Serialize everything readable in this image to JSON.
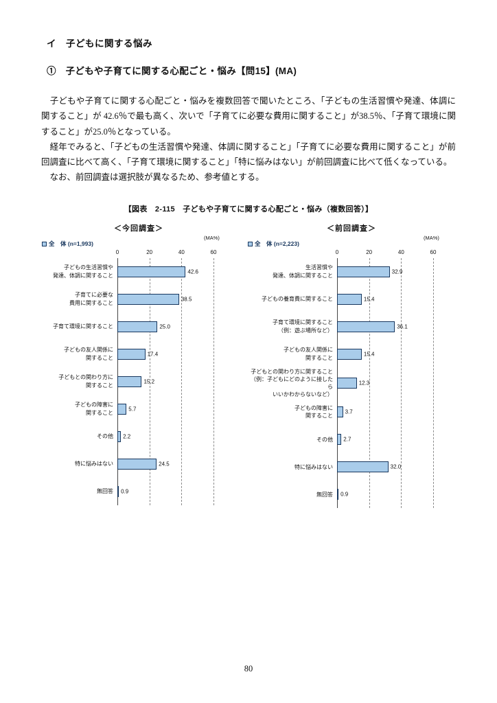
{
  "page": {
    "heading": "イ　子どもに関する悩み",
    "subheading": "①　子どもや子育てに関する心配ごと・悩み【問15】(MA)",
    "paragraphs": [
      "　子どもや子育てに関する心配ごと・悩みを複数回答で聞いたところ、「子どもの生活習慣や発達、体調に関すること」が 42.6％で最も高く、次いで「子育てに必要な費用に関すること」が38.5％、「子育て環境に関すること」が25.0％となっている。",
      "　経年でみると、「子どもの生活習慣や発達、体調に関すること」「子育てに必要な費用に関すること」が前回調査に比べて高く、「子育て環境に関すること」「特に悩みはない」が前回調査に比べて低くなっている。",
      "　なお、前回調査は選択肢が異なるため、参考値とする。"
    ],
    "figure_caption": "【図表　2-115　子どもや子育てに関する心配ごと・悩み（複数回答）】",
    "page_number": "80"
  },
  "colors": {
    "bar_fill": "#A9CCEA",
    "bar_border": "#17365D",
    "legend_text": "#17365D",
    "gridline": "#8a8a8a"
  },
  "chart_data": [
    {
      "type": "bar",
      "orientation": "horizontal",
      "title": "＜今回調査＞",
      "legend": {
        "label": "全　体 (n=1,993)"
      },
      "unit_label": "(MA%)",
      "xlim": [
        0,
        60
      ],
      "xticks": [
        0,
        20,
        40,
        60
      ],
      "grid": "dashed-vertical",
      "categories": [
        "子どもの生活習慣や\n発達、体調に関すること",
        "子育てに必要な\n費用に関すること",
        "子育て環境に関すること",
        "子どもの友人関係に\n関すること",
        "子どもとの関わり方に\n関すること",
        "子どもの障害に\n関すること",
        "その他",
        "特に悩みはない",
        "無回答"
      ],
      "values": [
        42.6,
        38.5,
        25.0,
        17.4,
        15.2,
        5.7,
        2.2,
        24.5,
        0.9
      ]
    },
    {
      "type": "bar",
      "orientation": "horizontal",
      "title": "＜前回調査＞",
      "legend": {
        "label": "全　体 (n=2,223)"
      },
      "unit_label": "(MA%)",
      "xlim": [
        0,
        60
      ],
      "xticks": [
        0,
        20,
        40,
        60
      ],
      "grid": "dashed-vertical",
      "categories": [
        "生活習慣や\n発達、体調に関すること",
        "子どもの養育費に関すること",
        "子育て環境に関すること\n（例：遊ぶ場所など）",
        "子どもの友人関係に\n関すること",
        "子どもとの関わり方に関すること\n（例：子どもにどのように接したら\nいいかわからないなど）",
        "子どもの障害に\n関すること",
        "その他",
        "特に悩みはない",
        "無回答"
      ],
      "values": [
        32.9,
        15.4,
        36.1,
        15.4,
        12.3,
        3.7,
        2.7,
        32.0,
        0.9
      ]
    }
  ]
}
